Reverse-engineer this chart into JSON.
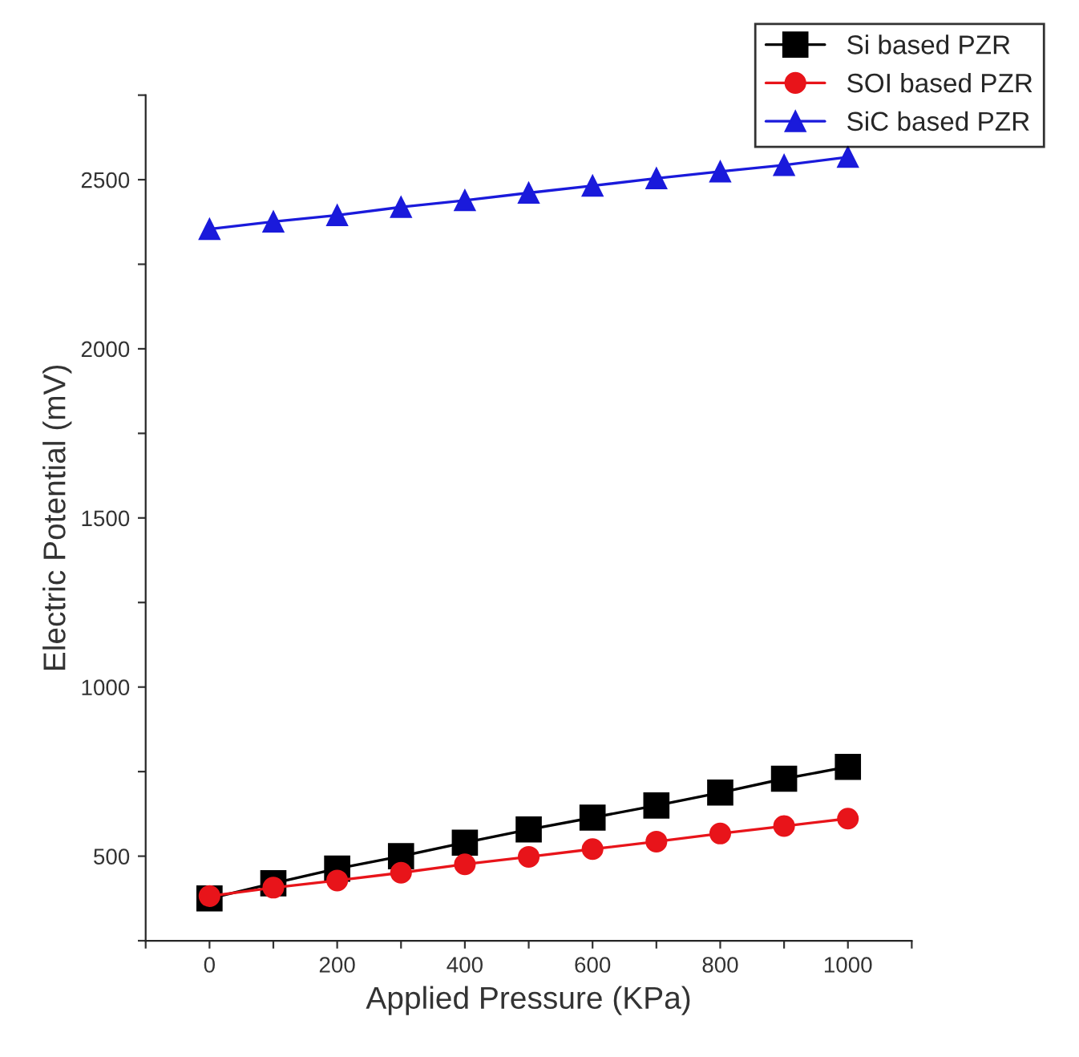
{
  "chart_data": {
    "type": "line",
    "xlabel": "Applied Pressure (KPa)",
    "ylabel": "Electric Potential (mV)",
    "x": [
      0,
      100,
      200,
      300,
      400,
      500,
      600,
      700,
      800,
      900,
      1000
    ],
    "series": [
      {
        "name": "Si based PZR",
        "color": "#000000",
        "marker": "square",
        "values": [
          375,
          420,
          463,
          500,
          540,
          579,
          614,
          650,
          688,
          729,
          764
        ]
      },
      {
        "name": "SOI based PZR",
        "color": "#e8141a",
        "marker": "circle",
        "values": [
          382,
          407,
          428,
          451,
          476,
          498,
          521,
          543,
          567,
          589,
          611
        ]
      },
      {
        "name": "SiC based PZR",
        "color": "#1a1adb",
        "marker": "triangle",
        "values": [
          2354,
          2376,
          2395,
          2419,
          2439,
          2461,
          2482,
          2504,
          2524,
          2543,
          2567
        ]
      }
    ],
    "xlim": [
      -100,
      1100
    ],
    "xticks": [
      {
        "value": -100,
        "label": null
      },
      0,
      {
        "value": 100,
        "label": null
      },
      200,
      {
        "value": 300,
        "label": null
      },
      400,
      {
        "value": 500,
        "label": null
      },
      600,
      {
        "value": 700,
        "label": null
      },
      800,
      {
        "value": 900,
        "label": null
      },
      1000,
      {
        "value": 1100,
        "label": null
      }
    ],
    "ylim": [
      250,
      2750
    ],
    "yticks": [
      {
        "value": 250,
        "label": null
      },
      500,
      {
        "value": 750,
        "label": null
      },
      1000,
      {
        "value": 1250,
        "label": null
      },
      1500,
      {
        "value": 1750,
        "label": null
      },
      2000,
      {
        "value": 2250,
        "label": null
      },
      2500,
      {
        "value": 2750,
        "label": null
      }
    ],
    "grid": false,
    "legend": "top right",
    "line_style": "solid"
  }
}
